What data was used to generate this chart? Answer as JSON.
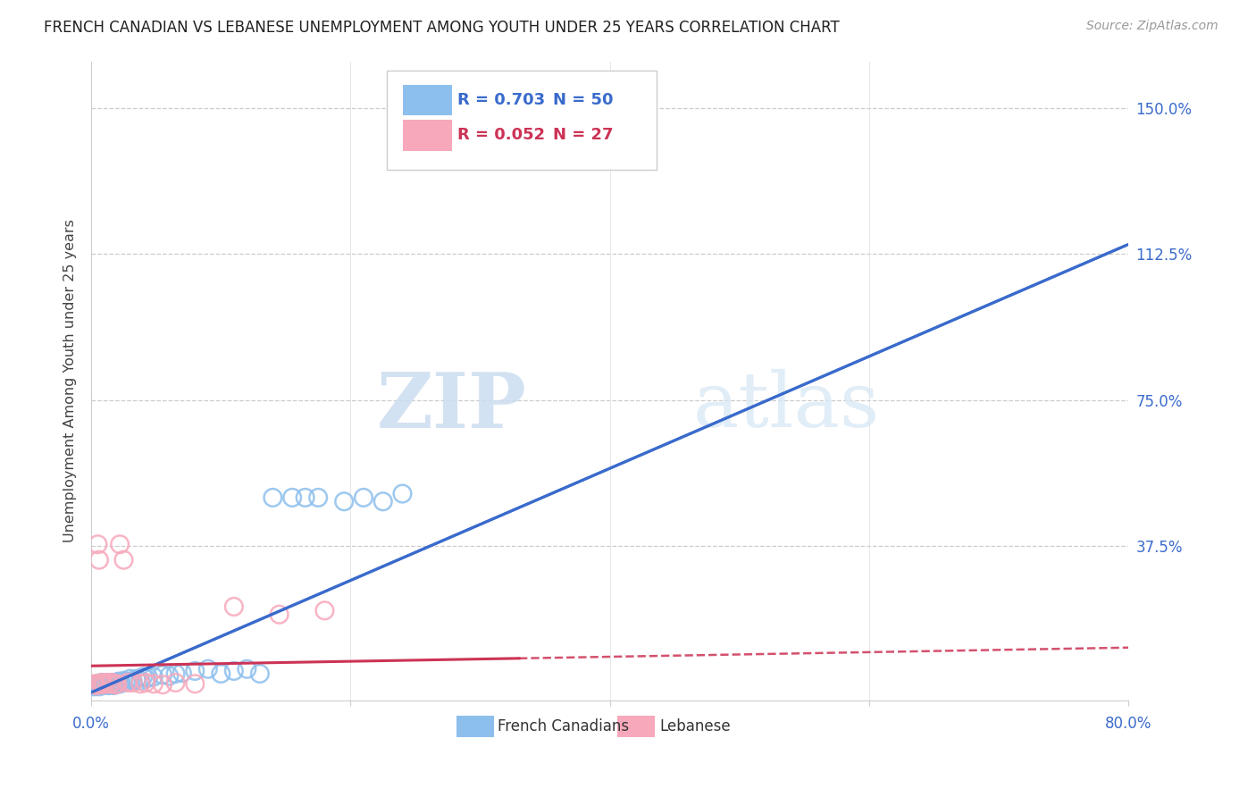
{
  "title": "FRENCH CANADIAN VS LEBANESE UNEMPLOYMENT AMONG YOUTH UNDER 25 YEARS CORRELATION CHART",
  "source": "Source: ZipAtlas.com",
  "ylabel": "Unemployment Among Youth under 25 years",
  "ytick_labels": [
    "150.0%",
    "112.5%",
    "75.0%",
    "37.5%"
  ],
  "ytick_values": [
    1.5,
    1.125,
    0.75,
    0.375
  ],
  "xlim": [
    0.0,
    0.8
  ],
  "ylim": [
    -0.02,
    1.62
  ],
  "legend_r1": "R = 0.703",
  "legend_n1": "N = 50",
  "legend_r2": "R = 0.052",
  "legend_n2": "N = 27",
  "color_blue": "#8dbfed",
  "color_pink": "#f7a8bb",
  "color_blue_line": "#3a6bcc",
  "color_pink_line": "#cc3355",
  "watermark_zip": "ZIP",
  "watermark_atlas": "atlas",
  "fc_x": [
    0.002,
    0.003,
    0.004,
    0.005,
    0.006,
    0.007,
    0.008,
    0.009,
    0.01,
    0.011,
    0.012,
    0.013,
    0.014,
    0.015,
    0.016,
    0.017,
    0.018,
    0.019,
    0.02,
    0.021,
    0.022,
    0.023,
    0.025,
    0.027,
    0.03,
    0.032,
    0.035,
    0.038,
    0.04,
    0.042,
    0.044,
    0.048,
    0.055,
    0.06,
    0.065,
    0.07,
    0.08,
    0.09,
    0.1,
    0.11,
    0.12,
    0.13,
    0.14,
    0.155,
    0.165,
    0.175,
    0.195,
    0.21,
    0.225,
    0.24
  ],
  "fc_y": [
    0.015,
    0.02,
    0.018,
    0.022,
    0.015,
    0.02,
    0.025,
    0.018,
    0.02,
    0.022,
    0.025,
    0.018,
    0.02,
    0.022,
    0.025,
    0.018,
    0.022,
    0.02,
    0.025,
    0.028,
    0.022,
    0.025,
    0.03,
    0.028,
    0.035,
    0.03,
    0.035,
    0.03,
    0.04,
    0.035,
    0.038,
    0.04,
    0.045,
    0.042,
    0.048,
    0.05,
    0.055,
    0.06,
    0.048,
    0.055,
    0.06,
    0.048,
    0.5,
    0.5,
    0.5,
    0.5,
    0.49,
    0.5,
    0.49,
    0.51
  ],
  "lb_x": [
    0.002,
    0.003,
    0.004,
    0.005,
    0.006,
    0.007,
    0.008,
    0.009,
    0.01,
    0.012,
    0.014,
    0.016,
    0.018,
    0.02,
    0.022,
    0.025,
    0.028,
    0.032,
    0.038,
    0.042,
    0.048,
    0.055,
    0.065,
    0.08,
    0.11,
    0.145,
    0.18
  ],
  "lb_y": [
    0.02,
    0.022,
    0.018,
    0.38,
    0.34,
    0.022,
    0.025,
    0.02,
    0.022,
    0.025,
    0.022,
    0.025,
    0.02,
    0.022,
    0.38,
    0.34,
    0.025,
    0.025,
    0.022,
    0.025,
    0.022,
    0.02,
    0.025,
    0.022,
    0.22,
    0.2,
    0.21
  ],
  "blue_line_x0": 0.0,
  "blue_line_y0": 0.0,
  "blue_line_x1": 0.8,
  "blue_line_y1": 1.15,
  "pink_line_x0": 0.0,
  "pink_line_y0": 0.068,
  "pink_line_x1_solid": 0.33,
  "pink_line_x1": 0.8,
  "pink_line_y1": 0.115
}
